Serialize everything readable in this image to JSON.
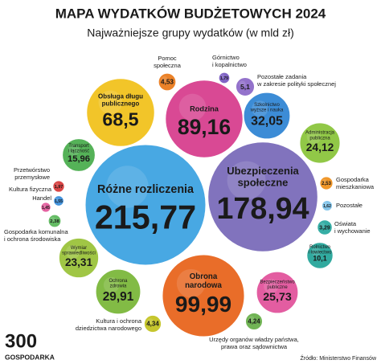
{
  "chart_data": {
    "type": "bubble",
    "title": "MAPA WYDATKÓW BUDŻETOWYCH 2024",
    "subtitle": "Najważniejsze grupy wydatków (w mld zł)",
    "source": "Źródło: Ministerstwo Finansów",
    "logo": {
      "number": "300",
      "name": "GOSPODARKA"
    },
    "categories": [
      [
        "Różne rozliczenia"
      ],
      [
        "Ubezpieczenia",
        "społeczne"
      ],
      [
        "Obrona",
        "narodowa"
      ],
      [
        "Rodzina"
      ],
      [
        "Obsługa długu",
        "publicznego"
      ],
      [
        "Szkolnictwo",
        "wyższe i nauka"
      ],
      [
        "Ochrona",
        "zdrowia"
      ],
      [
        "Bezpieczeństwo",
        "publiczne"
      ],
      [
        "Administracja",
        "publiczna"
      ],
      [
        "Wymiar",
        "sprawiedliwości"
      ],
      [
        "Transport",
        "i łączność"
      ],
      [
        "Rolnictwo",
        "i łowiectwo"
      ],
      [
        "Pozostałe zadania",
        "w zakresie polityki społecznej"
      ],
      [
        "Pomoc",
        "społeczna"
      ],
      [
        "Kultura i ochrona",
        "dziedzictwa narodowego"
      ],
      [
        "Urzędy organów władzy państwa,",
        "prawa oraz sądownictwa"
      ],
      [
        "Oświata",
        "i wychowanie"
      ],
      [
        "Gospodarka",
        "mieszkaniowa"
      ],
      [
        "Gospodarka komunalna",
        "i ochrona środowiska"
      ],
      [
        "Przetwórstwo",
        "przemysłowe"
      ],
      [
        "Górnictwo",
        "i kopalnictwo"
      ],
      [
        "Pozostałe"
      ],
      [
        "Handel"
      ],
      [
        "Kultura fizyczna"
      ]
    ],
    "values": [
      215.77,
      178.94,
      99.99,
      89.16,
      68.5,
      32.05,
      29.91,
      25.73,
      24.12,
      23.31,
      15.96,
      10.1,
      5.1,
      4.53,
      4.34,
      4.24,
      3.29,
      2.53,
      2.38,
      1.97,
      1.79,
      1.62,
      1.55,
      1.45
    ],
    "value_labels": [
      "215,77",
      "178,94",
      "99,99",
      "89,16",
      "68,5",
      "32,05",
      "29,91",
      "25,73",
      "24,12",
      "23,31",
      "15,96",
      "10,1",
      "5,1",
      "4,53",
      "4,34",
      "4,24",
      "3,29",
      "2,53",
      "2,38",
      "1,97",
      "1,79",
      "1,62",
      "1,55",
      "1,45"
    ],
    "colors": [
      "#3fa4e2",
      "#7b6cba",
      "#e8661e",
      "#d8408f",
      "#f2c21e",
      "#3286d4",
      "#7cb83c",
      "#e2559c",
      "#8cc63e",
      "#9bc43c",
      "#4cae50",
      "#27a69a",
      "#8e6bc9",
      "#ea7c1e",
      "#c3c423",
      "#6ab14c",
      "#2caaa1",
      "#f0921f",
      "#5db95d",
      "#d83c3c",
      "#7b5dc2",
      "#7fc4ea",
      "#3a8fdc",
      "#e45a9c"
    ]
  }
}
